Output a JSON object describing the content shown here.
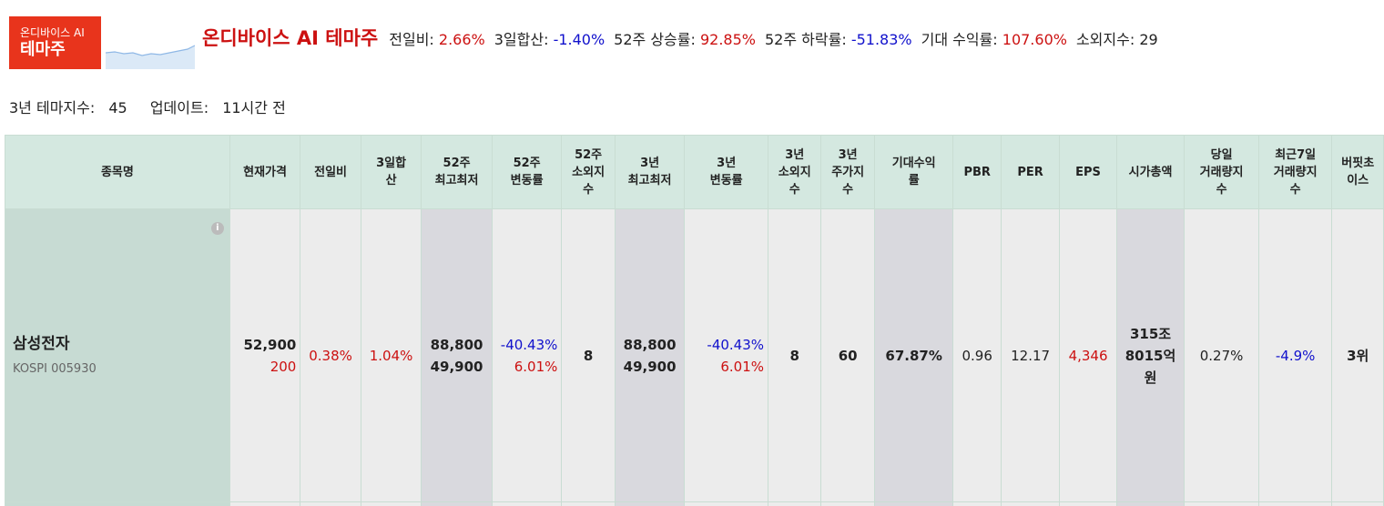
{
  "badge": {
    "top": "온디바이스 AI",
    "bottom": "테마주"
  },
  "theme": {
    "title": "온디바이스 AI 테마주",
    "stats": [
      {
        "label": "전일비:",
        "value": "2.66%",
        "tone": "red"
      },
      {
        "label": "3일합산:",
        "value": "-1.40%",
        "tone": "blue"
      },
      {
        "label": "52주 상승률:",
        "value": "92.85%",
        "tone": "red"
      },
      {
        "label": "52주 하락률:",
        "value": "-51.83%",
        "tone": "blue"
      },
      {
        "label": "기대 수익률:",
        "value": "107.60%",
        "tone": "red"
      },
      {
        "label": "소외지수:",
        "value": "29",
        "tone": "none"
      }
    ],
    "three_year_index_label": "3년 테마지수:",
    "three_year_index_value": "45",
    "update_label": "업데이트:",
    "update_value": "11시간 전"
  },
  "table": {
    "headers": {
      "name": "종목명",
      "price": "현재가격",
      "day_change": "전일비",
      "three_day": "3일합\n산",
      "high_low_52": "52주\n최고최저",
      "change_rate_52": "52주\n변동률",
      "neglect_52": "52주\n소외지\n수",
      "high_low_3y": "3년\n최고최저",
      "change_rate_3y": "3년\n변동률",
      "neglect_3y": "3년\n소외지\n수",
      "value_3y": "3년\n주가지\n수",
      "expected_return": "기대수익\n률",
      "pbr": "PBR",
      "per": "PER",
      "eps": "EPS",
      "market_cap": "시가총액",
      "volume_today": "당일\n거래량지\n수",
      "volume_7d": "최근7일\n거래량지\n수",
      "buffett": "버핏초\n이스"
    },
    "rows": [
      {
        "name": "삼성전자",
        "code": "KOSPI 005930",
        "price": "52,900",
        "price_change": "200",
        "day_change": "0.38%",
        "three_day": "1.04%",
        "high_52": "88,800",
        "low_52": "49,900",
        "drop_52": "-40.43%",
        "rise_52": "6.01%",
        "neglect_52": "8",
        "high_3y": "88,800",
        "low_3y": "49,900",
        "drop_3y": "-40.43%",
        "rise_3y": "6.01%",
        "neglect_3y": "8",
        "value_3y": "60",
        "expected_return": "67.87%",
        "pbr": "0.96",
        "per": "12.17",
        "eps": "4,346",
        "market_cap": "315조\n8015억\n원",
        "volume_today": "0.27%",
        "volume_7d": "-4.9%",
        "buffett": "3위"
      }
    ]
  },
  "colors": {
    "accent_red": "#cc1111",
    "accent_blue": "#1111cc",
    "badge": "#e8341c",
    "header_bg": "#d4e8e0"
  },
  "icons": {
    "info": "info-icon",
    "sparkline": "sparkline-chart"
  }
}
